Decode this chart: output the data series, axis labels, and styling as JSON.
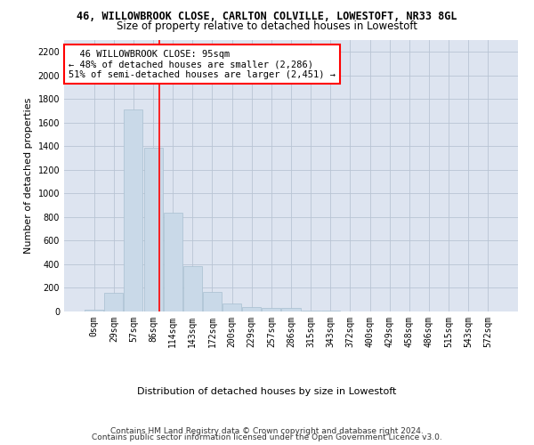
{
  "title": "46, WILLOWBROOK CLOSE, CARLTON COLVILLE, LOWESTOFT, NR33 8GL",
  "subtitle": "Size of property relative to detached houses in Lowestoft",
  "xlabel_bottom": "Distribution of detached houses by size in Lowestoft",
  "ylabel": "Number of detached properties",
  "bar_color": "#c9d9e8",
  "bar_edge_color": "#a8bfd0",
  "grid_color": "#b8c4d4",
  "background_color": "#dde4f0",
  "categories": [
    "0sqm",
    "29sqm",
    "57sqm",
    "86sqm",
    "114sqm",
    "143sqm",
    "172sqm",
    "200sqm",
    "229sqm",
    "257sqm",
    "286sqm",
    "315sqm",
    "343sqm",
    "372sqm",
    "400sqm",
    "429sqm",
    "458sqm",
    "486sqm",
    "515sqm",
    "543sqm",
    "572sqm"
  ],
  "values": [
    18,
    155,
    1710,
    1390,
    835,
    385,
    165,
    65,
    38,
    27,
    27,
    5,
    5,
    0,
    0,
    0,
    0,
    0,
    0,
    0,
    0
  ],
  "ylim": [
    0,
    2300
  ],
  "yticks": [
    0,
    200,
    400,
    600,
    800,
    1000,
    1200,
    1400,
    1600,
    1800,
    2000,
    2200
  ],
  "property_label": "46 WILLOWBROOK CLOSE: 95sqm",
  "pct_smaller": "48% of detached houses are smaller (2,286)",
  "pct_larger": "51% of semi-detached houses are larger (2,451)",
  "vline_bin": 3,
  "footnote1": "Contains HM Land Registry data © Crown copyright and database right 2024.",
  "footnote2": "Contains public sector information licensed under the Open Government Licence v3.0.",
  "title_fontsize": 8.5,
  "subtitle_fontsize": 8.5,
  "axis_label_fontsize": 8,
  "tick_fontsize": 7,
  "annotation_fontsize": 7.5,
  "footnote_fontsize": 6.5
}
